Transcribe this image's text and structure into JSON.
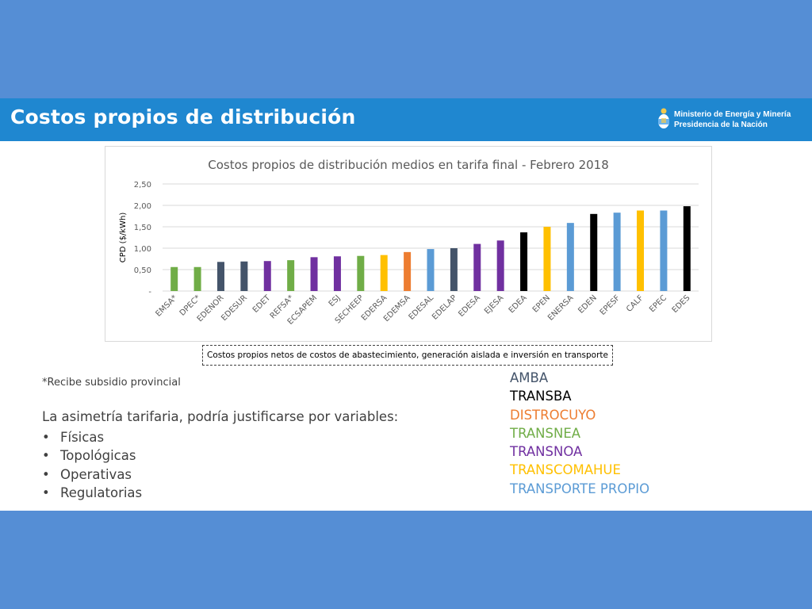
{
  "header": {
    "title": "Costos propios de distribución",
    "ministry_line1": "Ministerio de Energía y Minería",
    "ministry_line2": "Presidencia de la Nación"
  },
  "chart_data": {
    "type": "bar",
    "title": "Costos propios de distribución medios en tarifa final - Febrero 2018",
    "ylabel": "CPD ($/kWh)",
    "xlabel": "",
    "ylim": [
      0,
      2.5
    ],
    "yticks": [
      "-",
      "0,50",
      "1,00",
      "1,50",
      "2,00",
      "2,50"
    ],
    "grid": true,
    "categories": [
      "EMSA*",
      "DPEC*",
      "EDENOR",
      "EDESUR",
      "EDET",
      "REFSA*",
      "ECSAPEM",
      "ESJ",
      "SECHEEP",
      "EDERSA",
      "EDEMSA",
      "EDESAL",
      "EDELAP",
      "EDESA",
      "EJESA",
      "EDEA",
      "EPEN",
      "ENERSA",
      "EDEN",
      "EPESF",
      "CALF",
      "EPEC",
      "EDES"
    ],
    "values": [
      0.56,
      0.56,
      0.68,
      0.69,
      0.7,
      0.72,
      0.79,
      0.81,
      0.82,
      0.84,
      0.91,
      0.98,
      1.0,
      1.1,
      1.18,
      1.37,
      1.5,
      1.59,
      1.8,
      1.83,
      1.88,
      1.88,
      1.98
    ],
    "groups": [
      "TRANSNEA",
      "TRANSNEA",
      "AMBA",
      "AMBA",
      "TRANSNOA",
      "TRANSNEA",
      "TRANSNOA",
      "TRANSNOA",
      "TRANSNEA",
      "TRANSCOMAHUE",
      "DISTROCUYO",
      "TRANSPORTE PROPIO",
      "AMBA",
      "TRANSNOA",
      "TRANSNOA",
      "TRANSBA",
      "TRANSCOMAHUE",
      "TRANSPORTE PROPIO",
      "TRANSBA",
      "TRANSPORTE PROPIO",
      "TRANSCOMAHUE",
      "TRANSPORTE PROPIO",
      "TRANSBA"
    ]
  },
  "note": "Costos propios netos de costos de abastecimiento, generación aislada e inversión en transporte",
  "subsidy_note": "*Recibe subsidio provincial",
  "asymmetry_text": "La asimetría tarifaria, podría justificarse por variables:",
  "bullet_char": "•",
  "bullets": [
    "Físicas",
    "Topológicas",
    "Operativas",
    "Regulatorias"
  ],
  "legend": [
    {
      "label": "AMBA",
      "color": "#44546a"
    },
    {
      "label": "TRANSBA",
      "color": "#000000"
    },
    {
      "label": "DISTROCUYO",
      "color": "#ed7d31"
    },
    {
      "label": "TRANSNEA",
      "color": "#70ad47"
    },
    {
      "label": "TRANSNOA",
      "color": "#7030a0"
    },
    {
      "label": "TRANSCOMAHUE",
      "color": "#ffc000"
    },
    {
      "label": "TRANSPORTE PROPIO",
      "color": "#5b9bd5"
    }
  ],
  "colors": {
    "background": "#558ed5",
    "header": "#1f87d0",
    "grid": "#d9d9d9",
    "axis_text": "#595959"
  }
}
